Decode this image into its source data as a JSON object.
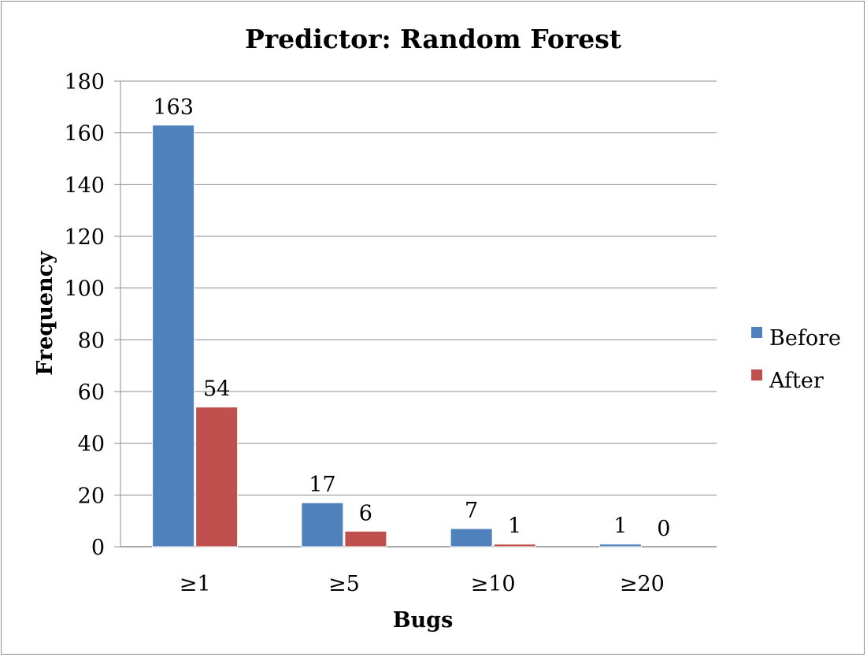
{
  "chart_data": {
    "type": "bar",
    "title": "Predictor: Random Forest",
    "xlabel": "Bugs",
    "ylabel": "Frequency",
    "categories": [
      "≥1",
      "≥5",
      "≥10",
      "≥20"
    ],
    "series": [
      {
        "name": "Before",
        "values": [
          163,
          17,
          7,
          1
        ],
        "color": "#4F81BD"
      },
      {
        "name": "After",
        "values": [
          54,
          6,
          1,
          0
        ],
        "color": "#C0504D"
      }
    ],
    "ylim": [
      0,
      180
    ],
    "yticks": [
      0,
      20,
      40,
      60,
      80,
      100,
      120,
      140,
      160,
      180
    ],
    "data_labels": [
      [
        "163",
        "17",
        "7",
        "1"
      ],
      [
        "54",
        "6",
        "1",
        "0"
      ]
    ],
    "grid": true,
    "legend_position": "right"
  }
}
